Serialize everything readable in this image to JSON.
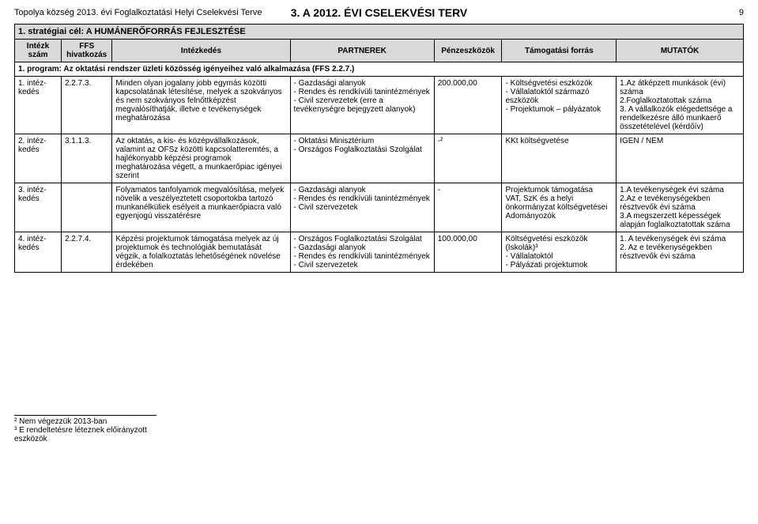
{
  "header": {
    "leftTitle": "Topolya község 2013. évi Foglalkoztatási Helyi Cselekvési Terve",
    "centerTitle": "3. A 2012. ÉVI CSELEKVÉSI TERV",
    "pageNum": "9"
  },
  "goalRow": "1. stratégiai cél: A HUMÁNERŐFORRÁS FEJLESZTÉSE",
  "headers": {
    "h1": "Intézk szám",
    "h2": "FFS hivatkozás",
    "h3": "Intézkedés",
    "h4": "PARTNEREK",
    "h5": "Pénzeszközök",
    "h6": "Támogatási forrás",
    "h7": "MUTATÓK"
  },
  "programRow": "1. program: Az oktatási rendszer üzleti közösség igényeihez való alkalmazása (FFS 2.2.7.)",
  "rows": [
    {
      "c1": "1. intéz-kedés",
      "c2": "2.2.7.3.",
      "c3": "Minden olyan jogalany jobb egymás közötti kapcsolatának létesítése, melyek a szokványos és nem szokványos felnőttképzést megvalósíthatják, illetve e tevékenységek meghatározása",
      "c4": [
        "Gazdasági alanyok",
        "Rendes és rendkívüli tanintézmények",
        "Civil szervezetek (erre a tevékenységre bejegyzett alanyok)"
      ],
      "c5": "200.000,00",
      "c6": [
        "Költségvetési eszközök",
        "Vállalatoktól származó eszközök",
        "Projektumok – pályázatok"
      ],
      "c7": "1.Az átképzett munkások (évi) száma\n2.Foglalkoztatottak száma\n3. A vállalkozók elégedettsége a rendelkezésre álló munkaerő összetételével (kérdőív)"
    },
    {
      "c1": "2. intéz-kedés",
      "c2": "3.1.1.3.",
      "c3": "Az oktatás, a kis- és középvállalkozások, valamint az OFSz közötti kapcsolatteremtés, a hajlékonyabb képzési programok meghatározása végett, a munkaerőpiac igényei szerint",
      "c4": [
        "Oktatási Minisztérium",
        "Országos Foglalkoztatási Szolgálat"
      ],
      "c5": "-²",
      "c6text": "KKt költségvetése",
      "c7": "IGEN / NEM"
    },
    {
      "c1": "3. intéz-kedés",
      "c2": "",
      "c3": "Folyamatos tanfolyamok megvalósítása, melyek növelik a veszélyeztetett csoportokba tartozó munkanélküliek esélyeit a munkaerőpiacra való egyenjogú visszatérésre",
      "c4": [
        "Gazdasági alanyok",
        "Rendes és rendkívüli tanintézmények",
        "Civil szervezetek"
      ],
      "c5": "-",
      "c6text": "Projektumok támogatása\nVAT, SzK és a helyi önkormányzat költségvetései\nAdományozók",
      "c7": "1.A tevékenységek évi száma\n2.Az e tevékenységekben résztvevők évi száma\n3.A megszerzett képességek alapján foglalkoztatottak száma"
    },
    {
      "c1": "4. intéz-kedés",
      "c2": "2.2.7.4.",
      "c3": "Képzési projektumok támogatása melyek az új projektumok és technológiák bemutatását végzik, a folalkoztatás lehetőségének növelése érdekében",
      "c4": [
        "Országos Foglalkoztatási Szolgálat",
        "Gazdasági alanyok",
        "Rendes és rendkívüli tanintézmények",
        "Civil szervezetek"
      ],
      "c5": "100.000,00",
      "c6text": "Költségvetési eszközök (Iskolák)³\n- Vállalatoktól\n- Pályázati projektumok",
      "c7": "1. A tevékenységek évi száma\n2. Az e tevékenységekben résztvevők évi száma"
    }
  ],
  "footnotes": {
    "f2": "² Nem végezzük 2013-ban",
    "f3": "³ E rendeltetésre léteznek előirányzott eszközök"
  }
}
